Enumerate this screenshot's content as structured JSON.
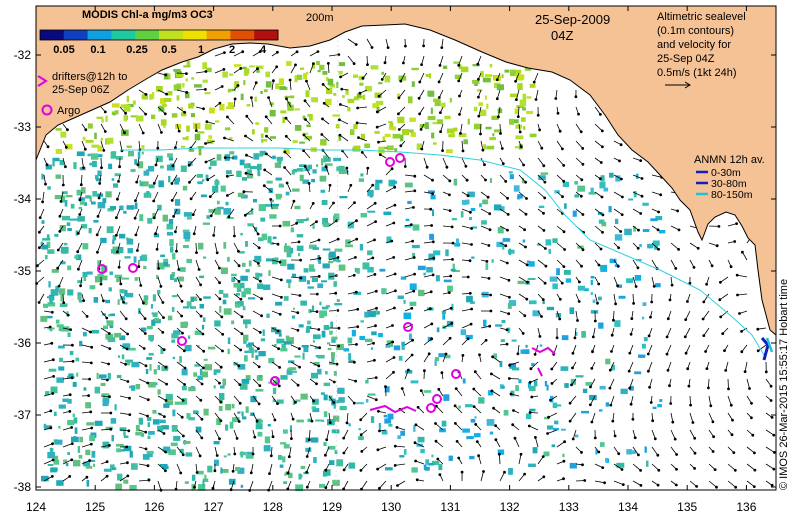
{
  "title": "MODIS Chl-a mg/m3 OC3",
  "colorbar": {
    "ticks": [
      "0.05",
      "0.1",
      "0.25",
      "0.5",
      "1",
      "2",
      "4"
    ],
    "colors": [
      "#0a0a80",
      "#1040c0",
      "#10a0e0",
      "#20c8a0",
      "#60d040",
      "#c0e020",
      "#f0e000",
      "#f0a000",
      "#e05000",
      "#b01010"
    ]
  },
  "date": "25-Sep-2009",
  "time": "04Z",
  "contour_label": "200m",
  "legend_drifters": {
    "line1": "drifters@12h to",
    "line2": "25-Sep 06Z",
    "color": "#e000e0"
  },
  "legend_argo": {
    "label": "Argo",
    "color": "#e000e0"
  },
  "altimetry_note": {
    "line1": "Altimetric sealevel",
    "line2": "(0.1m contours)",
    "line3": "and velocity for",
    "line4": "25-Sep 04Z",
    "scale_label": "0.5m/s (1kt 24h)"
  },
  "anmn": {
    "title": "ANMN 12h av.",
    "items": [
      {
        "label": "0-30m",
        "color": "#1020c0"
      },
      {
        "label": "30-80m",
        "color": "#1020c0"
      },
      {
        "label": "80-150m",
        "color": "#20c0e0"
      }
    ]
  },
  "axes": {
    "lon_ticks": [
      "124",
      "125",
      "126",
      "127",
      "128",
      "129",
      "130",
      "131",
      "132",
      "133",
      "134",
      "135",
      "136"
    ],
    "lat_ticks": [
      "-32",
      "-33",
      "-34",
      "-35",
      "-36",
      "-37",
      "-38"
    ]
  },
  "copyright": "© IMOS 26-Mar-2015 15:55:17 Hobart time",
  "colors": {
    "land": "#f5c296",
    "ocean": "#ffffff",
    "contour": "#30d0e0",
    "vector": "#000000"
  }
}
